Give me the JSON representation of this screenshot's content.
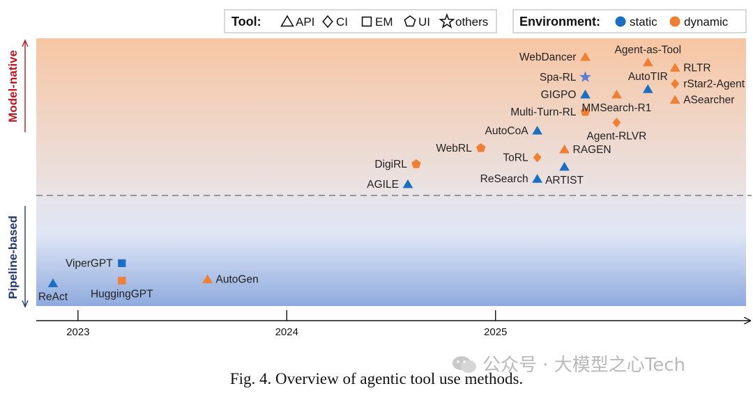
{
  "caption": "Fig. 4.  Overview of agentic tool use methods.",
  "watermark": "公众号 · 大模型之心Tech",
  "chart_data": {
    "type": "scatter",
    "title": "",
    "x_axis": {
      "ticks": [
        "2023",
        "2024",
        "2025"
      ],
      "range": [
        2022.8,
        2026.2
      ]
    },
    "y_axis": {
      "range": [
        0,
        1
      ]
    },
    "regions": [
      {
        "label": "Model-native",
        "color": "#f7c6a3",
        "label_color": "#c0141b"
      },
      {
        "label": "Pipeline-based",
        "color": "#8eaade",
        "label_color": "#1f3a78"
      }
    ],
    "boundary_y": 0.41,
    "tool_legend": {
      "title": "Tool:",
      "items": [
        {
          "shape": "triangle",
          "label": "API"
        },
        {
          "shape": "diamond",
          "label": "CI"
        },
        {
          "shape": "square",
          "label": "EM"
        },
        {
          "shape": "pentagon",
          "label": "UI"
        },
        {
          "shape": "star",
          "label": "others"
        }
      ]
    },
    "env_legend": {
      "title": "Environment:",
      "items": [
        {
          "env": "static",
          "label": "static",
          "color": "#1a6fc4"
        },
        {
          "env": "dynamic",
          "label": "dynamic",
          "color": "#f07f31"
        }
      ]
    },
    "points": [
      {
        "name": "ReAct",
        "x": 2022.88,
        "y": 0.085,
        "tool": "triangle",
        "env": "static",
        "label_pos": "below"
      },
      {
        "name": "ViperGPT",
        "x": 2023.21,
        "y": 0.16,
        "tool": "square",
        "env": "static",
        "label_pos": "left"
      },
      {
        "name": "HuggingGPT",
        "x": 2023.21,
        "y": 0.095,
        "tool": "square",
        "env": "dynamic",
        "label_pos": "below"
      },
      {
        "name": "AutoGen",
        "x": 2023.62,
        "y": 0.1,
        "tool": "triangle",
        "env": "dynamic",
        "label_pos": "right"
      },
      {
        "name": "AGILE",
        "x": 2024.58,
        "y": 0.455,
        "tool": "triangle",
        "env": "static",
        "label_pos": "left"
      },
      {
        "name": "DigiRL",
        "x": 2024.62,
        "y": 0.53,
        "tool": "pentagon",
        "env": "dynamic",
        "label_pos": "left"
      },
      {
        "name": "WebRL",
        "x": 2024.93,
        "y": 0.59,
        "tool": "pentagon",
        "env": "dynamic",
        "label_pos": "left"
      },
      {
        "name": "ReSearch",
        "x": 2025.2,
        "y": 0.475,
        "tool": "triangle",
        "env": "static",
        "label_pos": "left"
      },
      {
        "name": "ToRL",
        "x": 2025.2,
        "y": 0.555,
        "tool": "diamond",
        "env": "dynamic",
        "label_pos": "left"
      },
      {
        "name": "AutoCoA",
        "x": 2025.2,
        "y": 0.655,
        "tool": "triangle",
        "env": "static",
        "label_pos": "left"
      },
      {
        "name": "ARTIST",
        "x": 2025.33,
        "y": 0.52,
        "tool": "triangle",
        "env": "static",
        "label_pos": "below"
      },
      {
        "name": "RAGEN",
        "x": 2025.33,
        "y": 0.585,
        "tool": "triangle",
        "env": "dynamic",
        "label_pos": "right"
      },
      {
        "name": "WebDancer",
        "x": 2025.43,
        "y": 0.93,
        "tool": "triangle",
        "env": "dynamic",
        "label_pos": "left"
      },
      {
        "name": "Spa-RL",
        "x": 2025.43,
        "y": 0.855,
        "tool": "star",
        "env": "static",
        "label_pos": "left"
      },
      {
        "name": "GIGPO",
        "x": 2025.43,
        "y": 0.79,
        "tool": "triangle",
        "env": "static",
        "label_pos": "left"
      },
      {
        "name": "Multi-Turn-RL",
        "x": 2025.43,
        "y": 0.725,
        "tool": "pentagon",
        "env": "dynamic",
        "label_pos": "left"
      },
      {
        "name": "MMSearch-R1",
        "x": 2025.58,
        "y": 0.79,
        "tool": "triangle",
        "env": "dynamic",
        "label_pos": "below"
      },
      {
        "name": "Agent-RLVR",
        "x": 2025.58,
        "y": 0.685,
        "tool": "diamond",
        "env": "dynamic",
        "label_pos": "below"
      },
      {
        "name": "Agent-as-Tool",
        "x": 2025.73,
        "y": 0.91,
        "tool": "triangle",
        "env": "dynamic",
        "label_pos": "above"
      },
      {
        "name": "AutoTIR",
        "x": 2025.73,
        "y": 0.81,
        "tool": "triangle",
        "env": "static",
        "label_pos": "above"
      },
      {
        "name": "RLTR",
        "x": 2025.86,
        "y": 0.89,
        "tool": "triangle",
        "env": "dynamic",
        "label_pos": "right"
      },
      {
        "name": "rStar2-Agent",
        "x": 2025.86,
        "y": 0.83,
        "tool": "diamond",
        "env": "dynamic",
        "label_pos": "right"
      },
      {
        "name": "ASearcher",
        "x": 2025.86,
        "y": 0.77,
        "tool": "triangle",
        "env": "dynamic",
        "label_pos": "right"
      }
    ]
  }
}
